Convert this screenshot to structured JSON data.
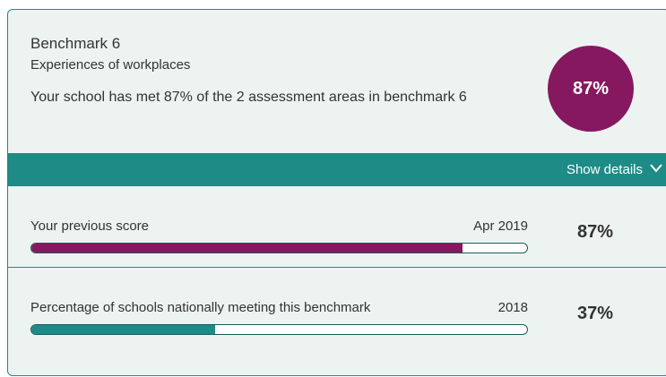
{
  "header": {
    "title": "Benchmark 6",
    "subtitle": "Experiences of workplaces",
    "description": "Your school has met 87% of the 2 assessment areas in benchmark 6",
    "badge": "87%"
  },
  "toggle": "Show details",
  "rows": [
    {
      "label": "Your previous score",
      "date": "Apr 2019",
      "value": 87,
      "value_label": "87%",
      "color": "#86185f",
      "xlim": [
        0,
        100
      ]
    },
    {
      "label": "Percentage of schools nationally meeting this benchmark",
      "date": "2018",
      "value": 37,
      "value_label": "37%",
      "color": "#1e8b86",
      "xlim": [
        0,
        100
      ]
    }
  ]
}
